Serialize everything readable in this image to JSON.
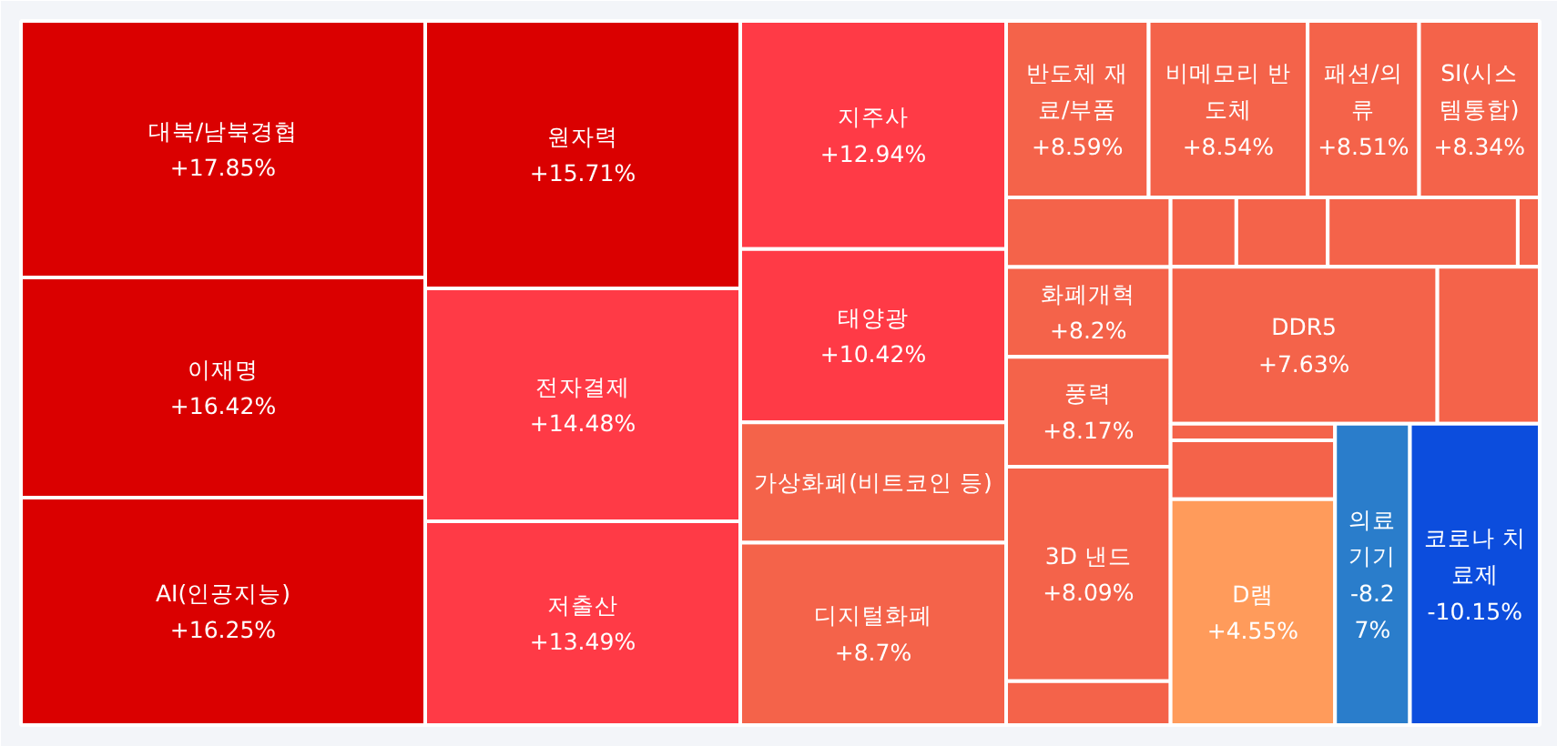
{
  "chart_data": {
    "type": "other",
    "categories": [
      "대북/남북경협",
      "이재명",
      "AI(인공지능)",
      "원자력",
      "전자결제",
      "저출산",
      "지주사",
      "태양광",
      "가상화폐(비트코인 등)",
      "디지털화폐",
      "반도체 재료/부품",
      "비메모리 반도체",
      "패션/의류",
      "SI(시스템통합)",
      null,
      "화폐개혁",
      "풍력",
      "3D 낸드",
      null,
      null,
      null,
      null,
      null,
      "DDR5",
      null,
      null,
      null,
      "D램",
      "의료기기",
      "코로나 치료제"
    ],
    "values": [
      17.85,
      16.42,
      16.25,
      15.71,
      14.48,
      13.49,
      12.94,
      10.42,
      null,
      8.7,
      8.59,
      8.54,
      8.51,
      8.34,
      null,
      8.2,
      8.17,
      8.09,
      null,
      null,
      null,
      null,
      null,
      7.63,
      null,
      null,
      null,
      4.55,
      -8.27,
      -10.15
    ],
    "value_labels": [
      "+17.85%",
      "+16.42%",
      "+16.25%",
      "+15.71%",
      "+14.48%",
      "+13.49%",
      "+12.94%",
      "+10.42%",
      null,
      "+8.7%",
      "+8.59%",
      "+8.54%",
      "+8.51%",
      "+8.34%",
      null,
      "+8.2%",
      "+8.17%",
      "+8.09%",
      null,
      null,
      null,
      null,
      null,
      "+7.63%",
      null,
      null,
      null,
      "+4.55%",
      "-8.27%",
      "-10.15%"
    ],
    "colors": [
      "#da0000",
      "#da0000",
      "#da0000",
      "#da0000",
      "#ff3a46",
      "#ff3a46",
      "#ff3a46",
      "#ff3a46",
      "#f4634a",
      "#f4634a",
      "#f4634a",
      "#f4634a",
      "#f4634a",
      "#f4634a",
      "#f4634a",
      "#f4634a",
      "#f4634a",
      "#f4634a",
      "#f4634a",
      "#f4634a",
      "#f4634a",
      "#f4634a",
      "#f4634a",
      "#f4634a",
      "#f4634a",
      "#f4634a",
      "#f4634a",
      "#ff9b5b",
      "#2a7dcb",
      "#0c4ddd"
    ]
  }
}
